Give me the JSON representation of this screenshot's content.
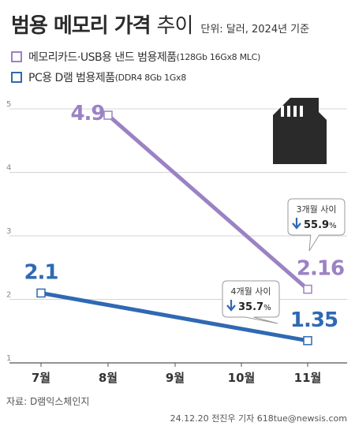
{
  "header": {
    "title_main": "범용 메모리 가격",
    "title_sub": "추이",
    "unit": "단위: 달러, 2024년 기준"
  },
  "legend": [
    {
      "main": "메모리카드·USB용 낸드 범용제품",
      "note": "(128Gb 16Gx8 MLC)"
    },
    {
      "main": "PC용 D램 범용제품",
      "note": "(DDR4 8Gb 1Gx8"
    }
  ],
  "chart_data": {
    "type": "line",
    "categories": [
      "7월",
      "8월",
      "9월",
      "10월",
      "11월"
    ],
    "ylim": [
      1,
      5
    ],
    "y_ticks": [
      "1",
      "2",
      "3",
      "4",
      "5"
    ],
    "grid": "horizontal",
    "series": [
      {
        "name": "메모리카드·USB용 낸드 범용제품(128Gb 16Gx8 MLC)",
        "color": "#9B82C4",
        "values": [
          null,
          4.9,
          null,
          null,
          2.16
        ],
        "labels": [
          null,
          "4.9",
          null,
          null,
          "2.16"
        ]
      },
      {
        "name": "PC용 D램 범용제품(DDR4 8Gb 1Gx8",
        "color": "#2F69B3",
        "values": [
          2.1,
          null,
          null,
          null,
          1.35
        ],
        "labels": [
          "2.1",
          null,
          null,
          null,
          "1.35"
        ]
      }
    ],
    "annotations": [
      {
        "series": 0,
        "period": "3개월 사이",
        "change": "55.9",
        "unit": "%"
      },
      {
        "series": 1,
        "period": "4개월 사이",
        "change": "35.7",
        "unit": "%"
      }
    ]
  },
  "icon": "memory-card-icon",
  "footer": {
    "source": "자료: D램익스체인지",
    "credit": "24.12.20 전진우 기자 618tue@newsis.com"
  }
}
